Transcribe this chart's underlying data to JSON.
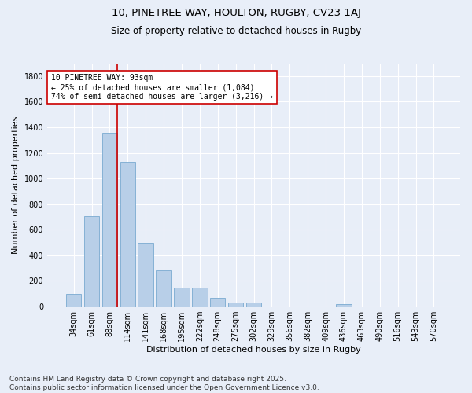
{
  "title1": "10, PINETREE WAY, HOULTON, RUGBY, CV23 1AJ",
  "title2": "Size of property relative to detached houses in Rugby",
  "xlabel": "Distribution of detached houses by size in Rugby",
  "ylabel": "Number of detached properties",
  "categories": [
    "34sqm",
    "61sqm",
    "88sqm",
    "114sqm",
    "141sqm",
    "168sqm",
    "195sqm",
    "222sqm",
    "248sqm",
    "275sqm",
    "302sqm",
    "329sqm",
    "356sqm",
    "382sqm",
    "409sqm",
    "436sqm",
    "463sqm",
    "490sqm",
    "516sqm",
    "543sqm",
    "570sqm"
  ],
  "values": [
    100,
    705,
    1355,
    1130,
    495,
    280,
    150,
    150,
    70,
    30,
    30,
    0,
    0,
    0,
    0,
    20,
    0,
    0,
    0,
    0,
    0
  ],
  "bar_color": "#b8cfe8",
  "bar_edge_color": "#7aaad0",
  "vline_color": "#cc0000",
  "annotation_text": "10 PINETREE WAY: 93sqm\n← 25% of detached houses are smaller (1,084)\n74% of semi-detached houses are larger (3,216) →",
  "annotation_box_color": "#ffffff",
  "annotation_box_edge_color": "#cc0000",
  "ylim": [
    0,
    1900
  ],
  "yticks": [
    0,
    200,
    400,
    600,
    800,
    1000,
    1200,
    1400,
    1600,
    1800
  ],
  "background_color": "#e8eef8",
  "grid_color": "#ffffff",
  "footer": "Contains HM Land Registry data © Crown copyright and database right 2025.\nContains public sector information licensed under the Open Government Licence v3.0.",
  "title_fontsize": 9.5,
  "subtitle_fontsize": 8.5,
  "axis_label_fontsize": 8,
  "tick_fontsize": 7,
  "annotation_fontsize": 7,
  "footer_fontsize": 6.5
}
